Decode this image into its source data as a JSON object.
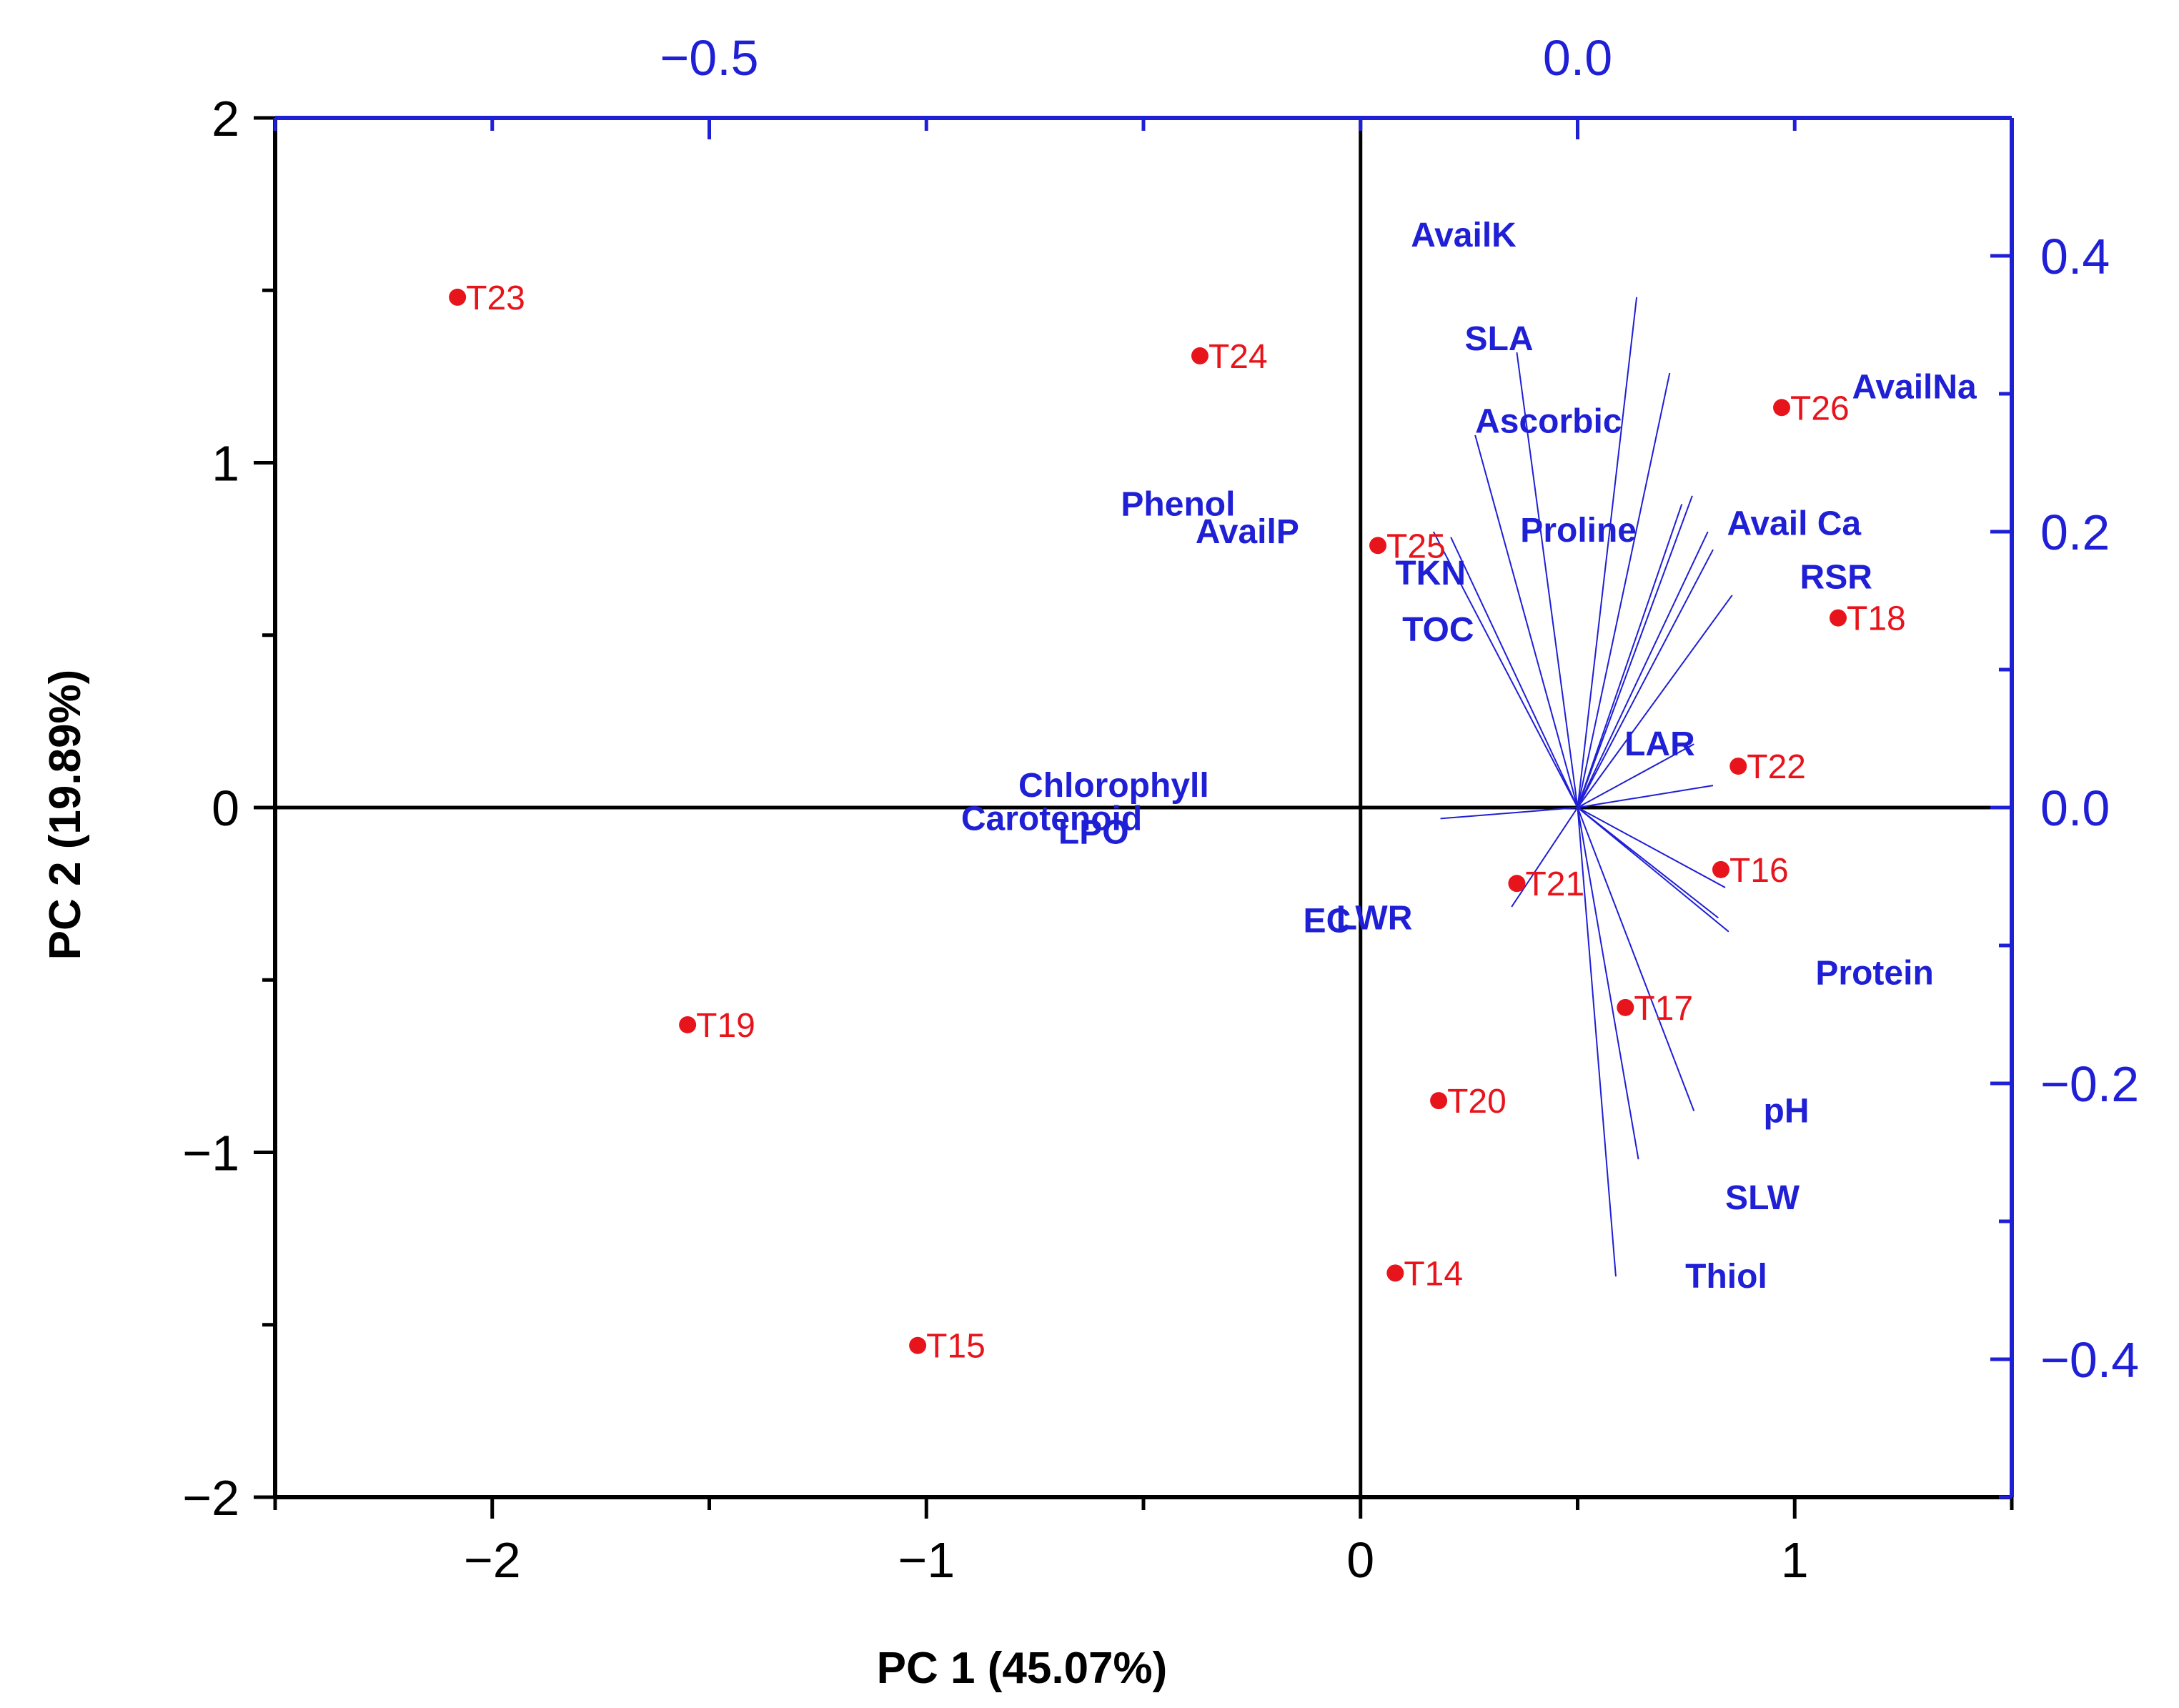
{
  "chart_data": {
    "type": "scatter",
    "subtype": "pca-biplot",
    "xlabel": "PC 1 (45.07%)",
    "ylabel": "PC 2 (19.89%)",
    "xlim": [
      -2.5,
      1.5
    ],
    "ylim": [
      -2,
      2
    ],
    "x_ticks": [
      -2,
      -1,
      0,
      1
    ],
    "x_tick_labels": [
      "−2",
      "−1",
      "0",
      "1"
    ],
    "y_ticks": [
      -2,
      -1,
      0,
      1,
      2
    ],
    "y_tick_labels": [
      "−2",
      "−1",
      "0",
      "1",
      "2"
    ],
    "loadings_xlim": [
      -0.75,
      0.25
    ],
    "loadings_ylim": [
      -0.5,
      0.5
    ],
    "top_ticks": [
      -0.5,
      0.0
    ],
    "top_tick_labels": [
      "−0.5",
      "0.0"
    ],
    "right_ticks": [
      -0.4,
      -0.2,
      0.0,
      0.2,
      0.4
    ],
    "right_tick_labels": [
      "−0.4",
      "−0.2",
      "0.0",
      "0.2",
      "0.4"
    ],
    "colors": {
      "scores": "#e8141c",
      "loadings": "#1f1fd6",
      "axes": "#000000",
      "secondary_axes": "#1f1fd6"
    },
    "scores": [
      {
        "name": "T23",
        "x": -2.08,
        "y": 1.48
      },
      {
        "name": "T24",
        "x": -0.37,
        "y": 1.31
      },
      {
        "name": "T25",
        "x": 0.04,
        "y": 0.76
      },
      {
        "name": "T26",
        "x": 0.97,
        "y": 1.16
      },
      {
        "name": "T18",
        "x": 1.1,
        "y": 0.55
      },
      {
        "name": "T22",
        "x": 0.87,
        "y": 0.12
      },
      {
        "name": "T16",
        "x": 0.83,
        "y": -0.18
      },
      {
        "name": "T21",
        "x": 0.36,
        "y": -0.22
      },
      {
        "name": "T17",
        "x": 0.61,
        "y": -0.58
      },
      {
        "name": "T20",
        "x": 0.18,
        "y": -0.85
      },
      {
        "name": "T14",
        "x": 0.08,
        "y": -1.35
      },
      {
        "name": "T19",
        "x": -1.55,
        "y": -0.63
      },
      {
        "name": "T15",
        "x": -1.02,
        "y": -1.56
      }
    ],
    "loadings": [
      {
        "name": "AvailK",
        "x": 0.034,
        "y": 0.37,
        "label_dx": -0.13,
        "label_dy": 0.045
      },
      {
        "name": "AvailNa",
        "x": 0.053,
        "y": 0.315,
        "label_dx": 0.105,
        "label_dy": -0.01
      },
      {
        "name": "AvailP",
        "x": 0.06,
        "y": 0.22,
        "label_dx": -0.28,
        "label_dy": -0.02
      },
      {
        "name": "Avail Ca",
        "x": 0.066,
        "y": 0.226,
        "label_dx": 0.02,
        "label_dy": -0.02
      },
      {
        "name": "TKN",
        "x": 0.075,
        "y": 0.2,
        "label_dx": -0.18,
        "label_dy": -0.03
      },
      {
        "name": "RSR",
        "x": 0.078,
        "y": 0.187,
        "label_dx": 0.05,
        "label_dy": -0.02
      },
      {
        "name": "TOC",
        "x": 0.089,
        "y": 0.154,
        "label_dx": -0.19,
        "label_dy": -0.025
      },
      {
        "name": "SLA",
        "x": -0.035,
        "y": 0.33,
        "label_dx": -0.03,
        "label_dy": 0.01
      },
      {
        "name": "Ascorbic",
        "x": -0.059,
        "y": 0.27,
        "label_dx": 0.0,
        "label_dy": 0.01
      },
      {
        "name": "Phenol",
        "x": -0.083,
        "y": 0.2,
        "label_dx": -0.18,
        "label_dy": 0.02
      },
      {
        "name": "Proline",
        "x": -0.073,
        "y": 0.196,
        "label_dx": 0.04,
        "label_dy": 0.005
      },
      {
        "name": "LAR",
        "x": 0.067,
        "y": 0.046,
        "label_dx": -0.04,
        "label_dy": 0.0
      },
      {
        "name": "Chlorophyll",
        "x": 0.078,
        "y": 0.016,
        "label_dx": -0.4,
        "label_dy": 0.0
      },
      {
        "name": "Carotenoid",
        "x": 0.085,
        "y": -0.058,
        "label_dx": -0.44,
        "label_dy": 0.05
      },
      {
        "name": "LWR",
        "x": 0.081,
        "y": -0.08,
        "label_dx": -0.22,
        "label_dy": 0.0
      },
      {
        "name": "Protein",
        "x": 0.087,
        "y": -0.09,
        "label_dx": 0.05,
        "label_dy": -0.03
      },
      {
        "name": "pH",
        "x": 0.067,
        "y": -0.22,
        "label_dx": 0.04,
        "label_dy": 0.0
      },
      {
        "name": "SLW",
        "x": 0.035,
        "y": -0.255,
        "label_dx": 0.05,
        "label_dy": -0.028
      },
      {
        "name": "Thiol",
        "x": 0.022,
        "y": -0.34,
        "label_dx": 0.04,
        "label_dy": 0.0
      },
      {
        "name": "LPO",
        "x": -0.079,
        "y": -0.008,
        "label_dx": -0.22,
        "label_dy": -0.01
      },
      {
        "name": "EC",
        "x": -0.038,
        "y": -0.072,
        "label_dx": -0.12,
        "label_dy": -0.01
      }
    ]
  }
}
